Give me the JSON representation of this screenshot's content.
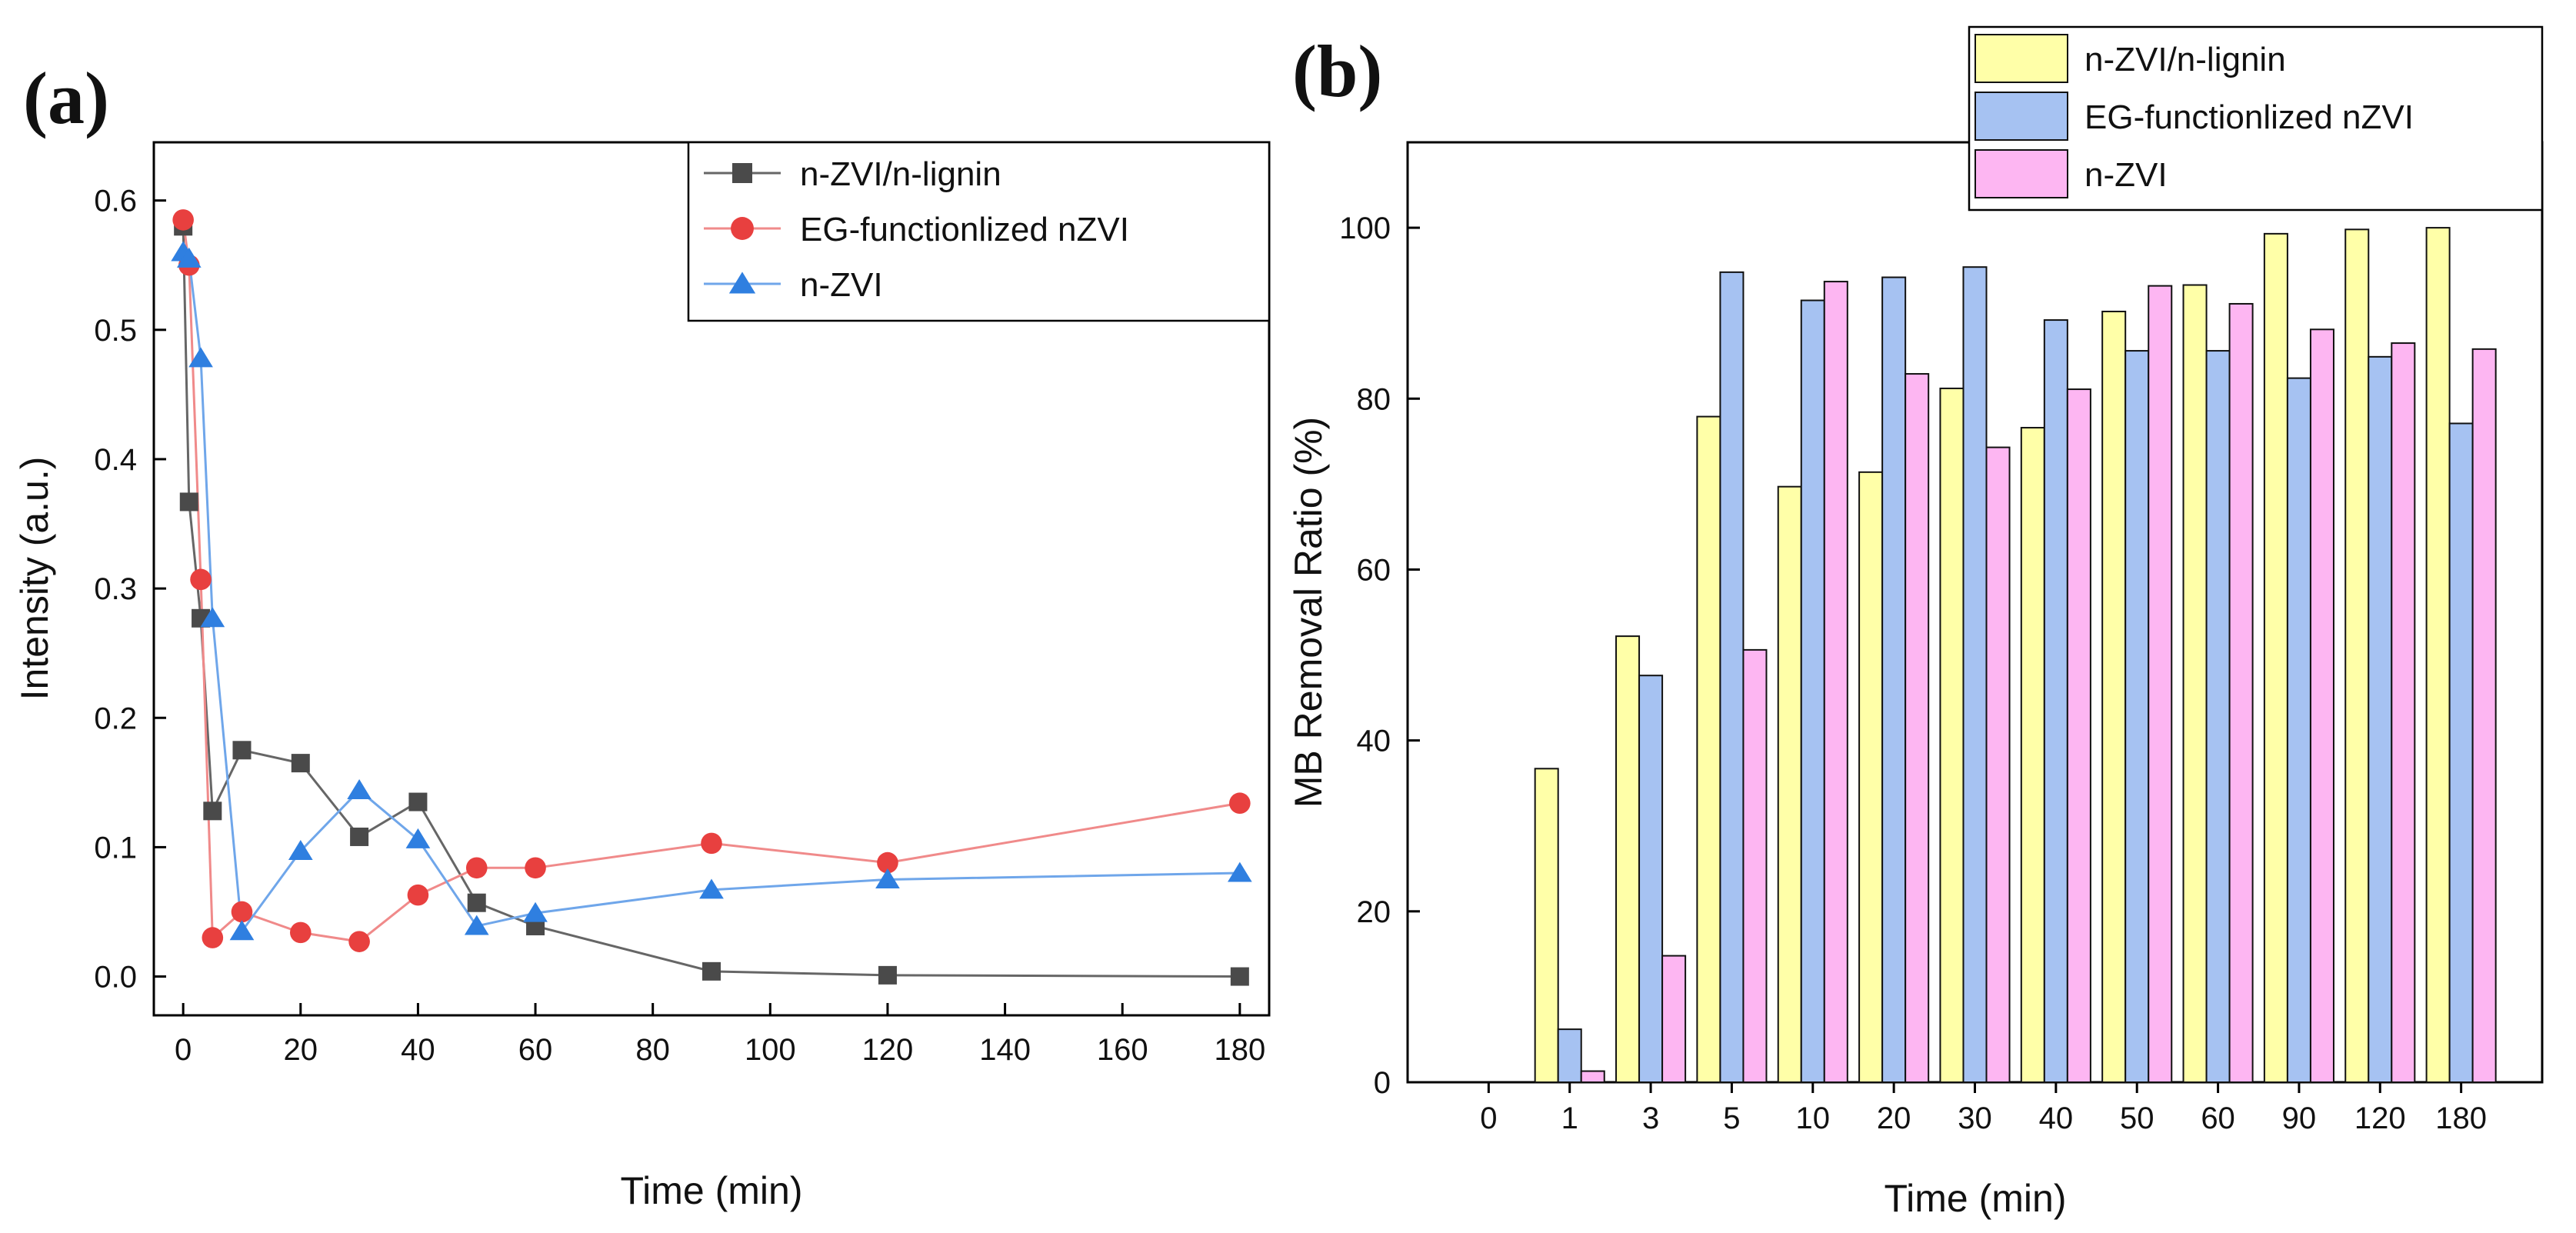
{
  "chart_data": [
    {
      "panel_label": "(a)",
      "type": "line",
      "xlabel": "Time (min)",
      "ylabel": "Intensity (a.u.)",
      "xlim": [
        -5,
        185
      ],
      "ylim": [
        -0.03,
        0.645
      ],
      "xticks": [
        0,
        20,
        40,
        60,
        80,
        100,
        120,
        140,
        160,
        180
      ],
      "yticks": [
        0.0,
        0.1,
        0.2,
        0.3,
        0.4,
        0.5,
        0.6
      ],
      "ytick_labels": [
        "0.0",
        "0.1",
        "0.2",
        "0.3",
        "0.4",
        "0.5",
        "0.6"
      ],
      "legend_position": "top-right",
      "x": [
        0,
        1,
        3,
        5,
        10,
        20,
        30,
        40,
        50,
        60,
        90,
        120,
        180
      ],
      "series": [
        {
          "name": "n-ZVI/n-lignin",
          "marker": "square",
          "color": "#4a4a4a",
          "line_color": "#666666",
          "values": [
            0.58,
            0.367,
            0.277,
            0.128,
            0.175,
            0.165,
            0.108,
            0.135,
            0.057,
            0.039,
            0.004,
            0.001,
            0.0
          ]
        },
        {
          "name": "EG-functionlized nZVI",
          "marker": "circle",
          "color": "#e8403f",
          "line_color": "#f08a8a",
          "values": [
            0.585,
            0.55,
            0.307,
            0.03,
            0.05,
            0.034,
            0.027,
            0.063,
            0.084,
            0.084,
            0.103,
            0.088,
            0.134
          ]
        },
        {
          "name": "n-ZVI",
          "marker": "triangle",
          "color": "#2f7fe0",
          "line_color": "#6fa6ea",
          "values": [
            0.56,
            0.555,
            0.478,
            0.277,
            0.035,
            0.097,
            0.144,
            0.106,
            0.039,
            0.049,
            0.067,
            0.075,
            0.08
          ]
        }
      ]
    },
    {
      "panel_label": "(b)",
      "type": "bar",
      "xlabel": "Time (min)",
      "ylabel": "MB Removal Ratio (%)",
      "ylim": [
        0,
        110
      ],
      "yticks": [
        0,
        20,
        40,
        60,
        80,
        100
      ],
      "categories": [
        "0",
        "1",
        "3",
        "5",
        "10",
        "20",
        "30",
        "40",
        "50",
        "60",
        "90",
        "120",
        "180"
      ],
      "legend_position": "top-right",
      "series": [
        {
          "name": "n-ZVI/n-lignin",
          "color": "#ffffa8",
          "values": [
            0,
            36.7,
            52.2,
            77.9,
            69.7,
            71.4,
            81.2,
            76.6,
            90.2,
            93.3,
            99.3,
            99.8,
            100
          ]
        },
        {
          "name": "EG-functionlized nZVI",
          "color": "#a6c2f2",
          "values": [
            0,
            6.2,
            47.6,
            94.8,
            91.5,
            94.2,
            95.4,
            89.2,
            85.6,
            85.6,
            82.4,
            84.9,
            77.1
          ]
        },
        {
          "name": "n-ZVI",
          "color": "#fdb6f2",
          "values": [
            0,
            1.3,
            14.8,
            50.6,
            93.7,
            82.9,
            74.3,
            81.1,
            93.2,
            91.1,
            88.1,
            86.5,
            85.8
          ]
        }
      ]
    }
  ]
}
